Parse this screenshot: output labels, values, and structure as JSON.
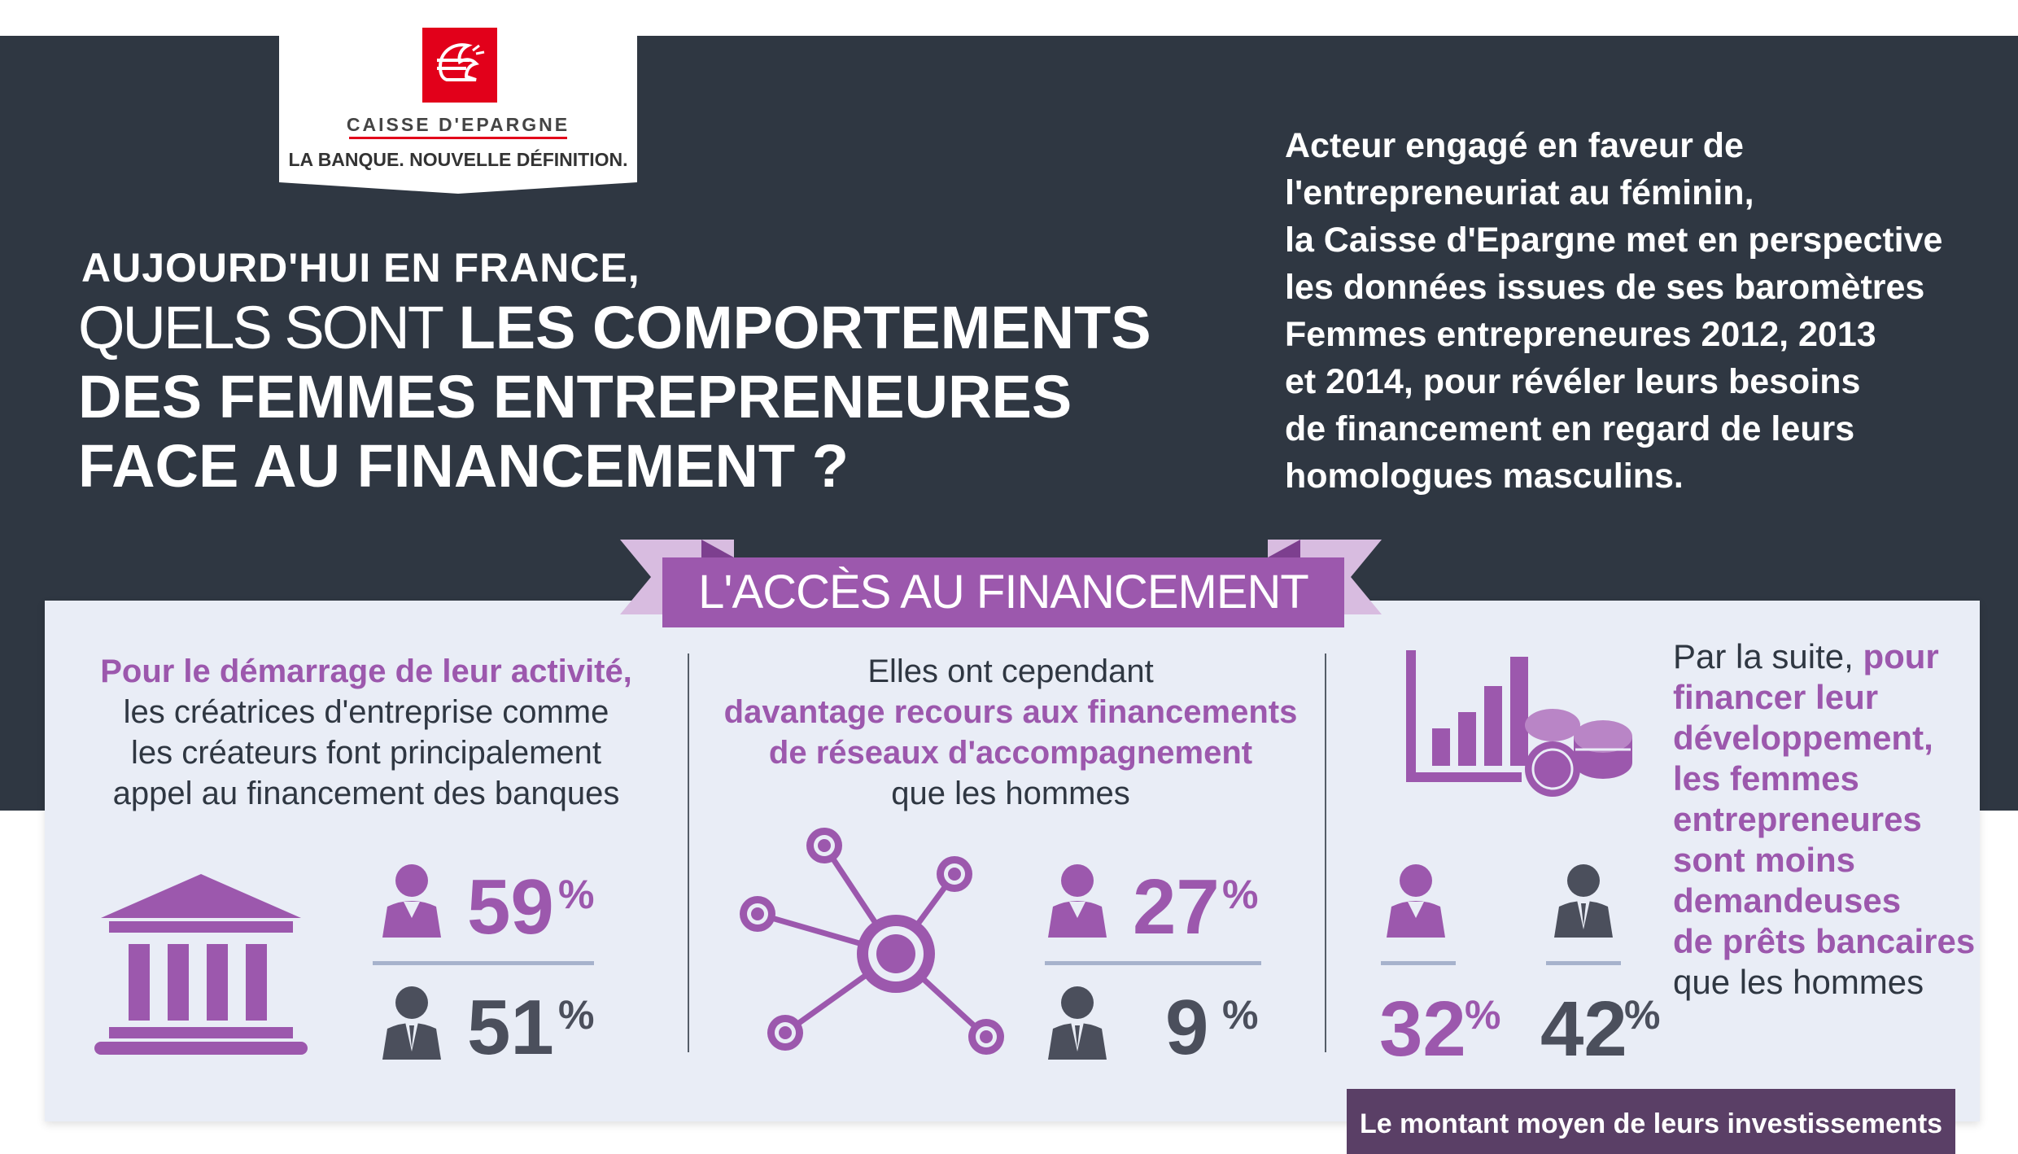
{
  "brand": {
    "name": "CAISSE D'EPARGNE",
    "tagline": "LA BANQUE. NOUVELLE DÉFINITION.",
    "color": "#e2001a"
  },
  "header": {
    "line1": "AUJOURD'HUI EN FRANCE,",
    "line2_light": "QUELS SONT",
    "line2_bold": "LES COMPORTEMENTS",
    "line3": "DES FEMMES ENTREPRENEURES",
    "line4": "FACE AU FINANCEMENT ?"
  },
  "intro": {
    "lines": [
      "Acteur engagé en faveur de",
      "l'entrepreneuriat au féminin,",
      "la Caisse d'Epargne met en perspective",
      "les données issues de ses baromètres",
      "Femmes entrepreneures 2012, 2013",
      "et 2014, pour révéler leurs besoins",
      "de financement en regard de leurs",
      "homologues masculins."
    ]
  },
  "section": {
    "title": "L'ACCÈS AU FINANCEMENT"
  },
  "col1": {
    "highlight": "Pour le démarrage de leur activité,",
    "lines": [
      "les créatrices d'entreprise comme",
      "les créateurs font principalement",
      "appel au financement des banques"
    ],
    "women_value": "59",
    "men_value": "51",
    "unit": "%",
    "icon": "bank-icon"
  },
  "col2": {
    "line1": "Elles ont cependant",
    "highlight1": "davantage recours aux financements",
    "highlight2": "de réseaux d'accompagnement",
    "line_end": "que les hommes",
    "women_value": "27",
    "men_value": "9",
    "unit": "%",
    "icon": "network-icon"
  },
  "col3": {
    "line1_plain": "Par la suite,",
    "line1_hl": "pour",
    "highlights": [
      "financer leur",
      "développement,",
      "les femmes",
      "entrepreneures",
      "sont moins",
      "demandeuses",
      "de prêts bancaires"
    ],
    "line_end": "que les hommes",
    "women_value": "32",
    "men_value": "42",
    "unit": "%",
    "icon": "chart-coins-icon"
  },
  "banner": {
    "text": "Le montant moyen de leurs investissements"
  },
  "colors": {
    "dark_band": "#2f3742",
    "purple": "#9c58ad",
    "ribbon_light": "#d8bce0",
    "panel": "#e9edf6",
    "man_icon": "#4b4f5c"
  }
}
